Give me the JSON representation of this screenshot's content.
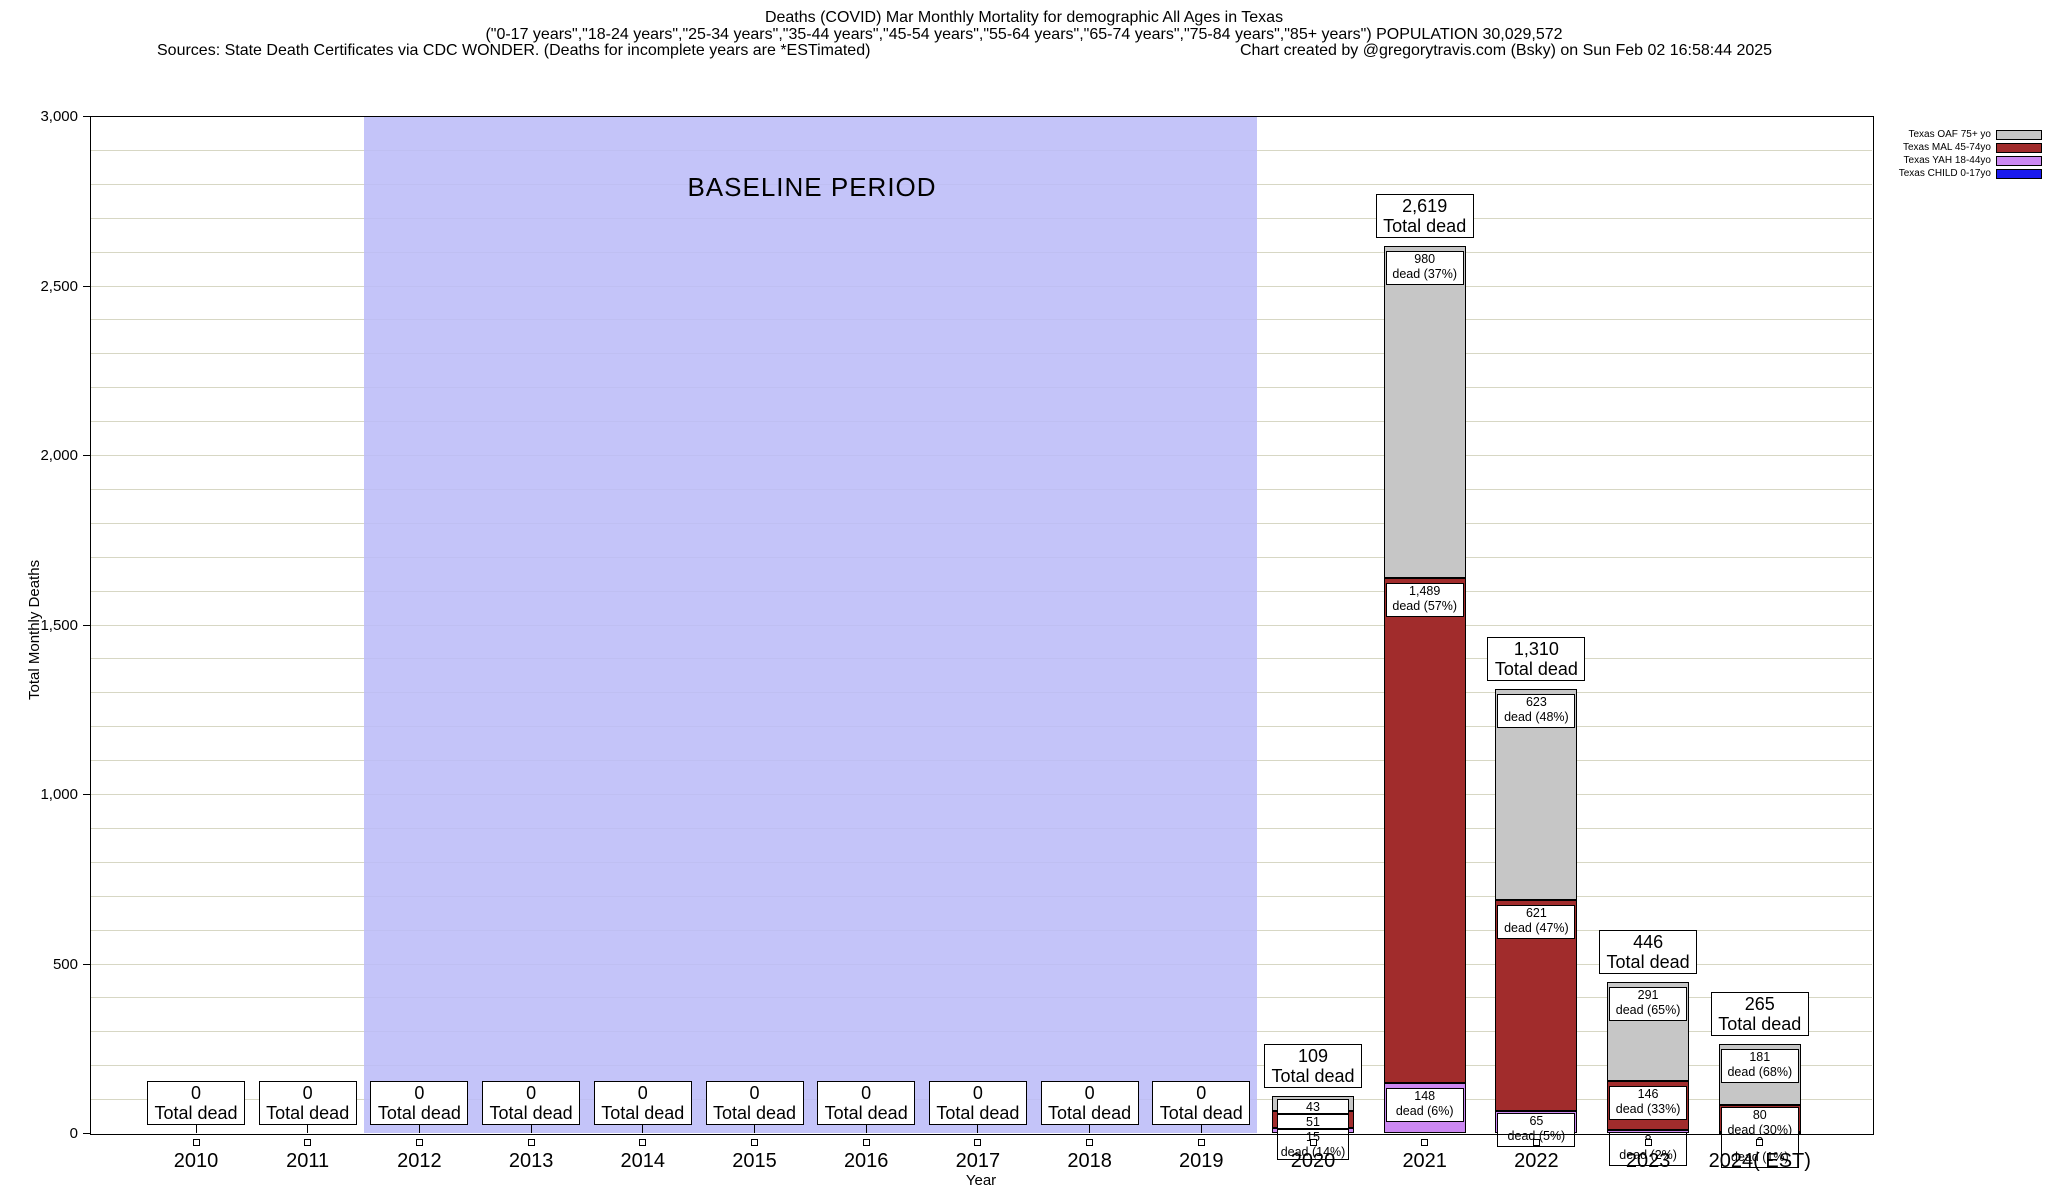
{
  "header": {
    "title": "Deaths (COVID) Mar Monthly Mortality for demographic All Ages in Texas",
    "subtitle": "(\"0-17 years\",\"18-24 years\",\"25-34 years\",\"35-44 years\",\"45-54 years\",\"55-64 years\",\"65-74 years\",\"75-84 years\",\"85+ years\") POPULATION 30,029,572",
    "sources": "Sources: State Death Certificates via CDC WONDER. (Deaths for incomplete years are *ESTimated)",
    "credit": "Chart created by @gregorytravis.com (Bsky) on Sun Feb 02 16:58:44 2025"
  },
  "chart_data": {
    "type": "bar",
    "stacked": true,
    "xlabel": "Year",
    "ylabel": "Total Monthly Deaths",
    "ylim": [
      0,
      3000
    ],
    "ytick_step": 500,
    "minor_grid_step": 100,
    "grid": true,
    "y_tick_labels": [
      "0",
      "500",
      "1,000",
      "1,500",
      "2,000",
      "2,500",
      "3,000"
    ],
    "baseline_band": {
      "label": "BASELINE PERIOD",
      "from_category": "2012",
      "to_category": "2019",
      "color": "#bbbbf8"
    },
    "legend": {
      "position": "top-right",
      "entries": [
        {
          "key": "OAF",
          "label": "Texas OAF 75+ yo",
          "color": "#c6c6c6"
        },
        {
          "key": "MAL",
          "label": "Texas MAL 45-74yo",
          "color": "#a12c2c"
        },
        {
          "key": "YAH",
          "label": "Texas YAH 18-44yo",
          "color": "#cc88f2"
        },
        {
          "key": "CHILD",
          "label": "Texas CHILD 0-17yo",
          "color": "#1a1aee"
        }
      ]
    },
    "total_label_suffix": "Total dead",
    "categories": [
      "2010",
      "2011",
      "2012",
      "2013",
      "2014",
      "2015",
      "2016",
      "2017",
      "2018",
      "2019",
      "2020",
      "2021",
      "2022",
      "2023",
      "2024( EST)"
    ],
    "series": [
      {
        "name": "Texas OAF 75+ yo",
        "key": "OAF",
        "values": [
          0,
          0,
          0,
          0,
          0,
          0,
          0,
          0,
          0,
          0,
          43,
          980,
          623,
          291,
          181
        ]
      },
      {
        "name": "Texas MAL 45-74yo",
        "key": "MAL",
        "values": [
          0,
          0,
          0,
          0,
          0,
          0,
          0,
          0,
          0,
          0,
          51,
          1489,
          621,
          146,
          80
        ]
      },
      {
        "name": "Texas YAH 18-44yo",
        "key": "YAH",
        "values": [
          0,
          0,
          0,
          0,
          0,
          0,
          0,
          0,
          0,
          0,
          15,
          148,
          65,
          8,
          3
        ]
      },
      {
        "name": "Texas CHILD 0-17yo",
        "key": "CHILD",
        "values": [
          0,
          0,
          0,
          0,
          0,
          0,
          0,
          0,
          0,
          0,
          0,
          0,
          0,
          0,
          0
        ]
      }
    ],
    "bars": [
      {
        "category": "2010",
        "total_label": "0",
        "segments": []
      },
      {
        "category": "2011",
        "total_label": "0",
        "segments": []
      },
      {
        "category": "2012",
        "total_label": "0",
        "segments": []
      },
      {
        "category": "2013",
        "total_label": "0",
        "segments": []
      },
      {
        "category": "2014",
        "total_label": "0",
        "segments": []
      },
      {
        "category": "2015",
        "total_label": "0",
        "segments": []
      },
      {
        "category": "2016",
        "total_label": "0",
        "segments": []
      },
      {
        "category": "2017",
        "total_label": "0",
        "segments": []
      },
      {
        "category": "2018",
        "total_label": "0",
        "segments": []
      },
      {
        "category": "2019",
        "total_label": "0",
        "segments": []
      },
      {
        "category": "2020",
        "total_label": "109",
        "segments": [
          {
            "key": "OAF",
            "value": 43,
            "label_lines": [
              "43"
            ]
          },
          {
            "key": "MAL",
            "value": 51,
            "label_lines": [
              "51"
            ]
          },
          {
            "key": "YAH",
            "value": 15,
            "label_lines": [
              "15",
              "dead (14%)"
            ]
          }
        ]
      },
      {
        "category": "2021",
        "total_label": "2,619",
        "segments": [
          {
            "key": "OAF",
            "value": 980,
            "label_lines": [
              "980",
              "dead (37%)"
            ]
          },
          {
            "key": "MAL",
            "value": 1489,
            "label_lines": [
              "1,489",
              "dead (57%)"
            ]
          },
          {
            "key": "YAH",
            "value": 148,
            "label_lines": [
              "148",
              "dead (6%)"
            ]
          }
        ]
      },
      {
        "category": "2022",
        "total_label": "1,310",
        "segments": [
          {
            "key": "OAF",
            "value": 623,
            "label_lines": [
              "623",
              "dead (48%)"
            ]
          },
          {
            "key": "MAL",
            "value": 621,
            "label_lines": [
              "621",
              "dead (47%)"
            ]
          },
          {
            "key": "YAH",
            "value": 65,
            "label_lines": [
              "65",
              "dead (5%)"
            ]
          }
        ]
      },
      {
        "category": "2023",
        "total_label": "446",
        "segments": [
          {
            "key": "OAF",
            "value": 291,
            "label_lines": [
              "291",
              "dead (65%)"
            ]
          },
          {
            "key": "MAL",
            "value": 146,
            "label_lines": [
              "146",
              "dead (33%)"
            ]
          },
          {
            "key": "YAH",
            "value": 8,
            "label_lines": [
              "8",
              "dead (2%)"
            ]
          }
        ]
      },
      {
        "category": "2024( EST)",
        "total_label": "265",
        "segments": [
          {
            "key": "OAF",
            "value": 181,
            "label_lines": [
              "181",
              "dead (68%)"
            ]
          },
          {
            "key": "MAL",
            "value": 80,
            "label_lines": [
              "80",
              "dead (30%)"
            ]
          },
          {
            "key": "YAH",
            "value": 3,
            "label_lines": [
              "3",
              "dead (1%)"
            ]
          }
        ]
      }
    ]
  }
}
